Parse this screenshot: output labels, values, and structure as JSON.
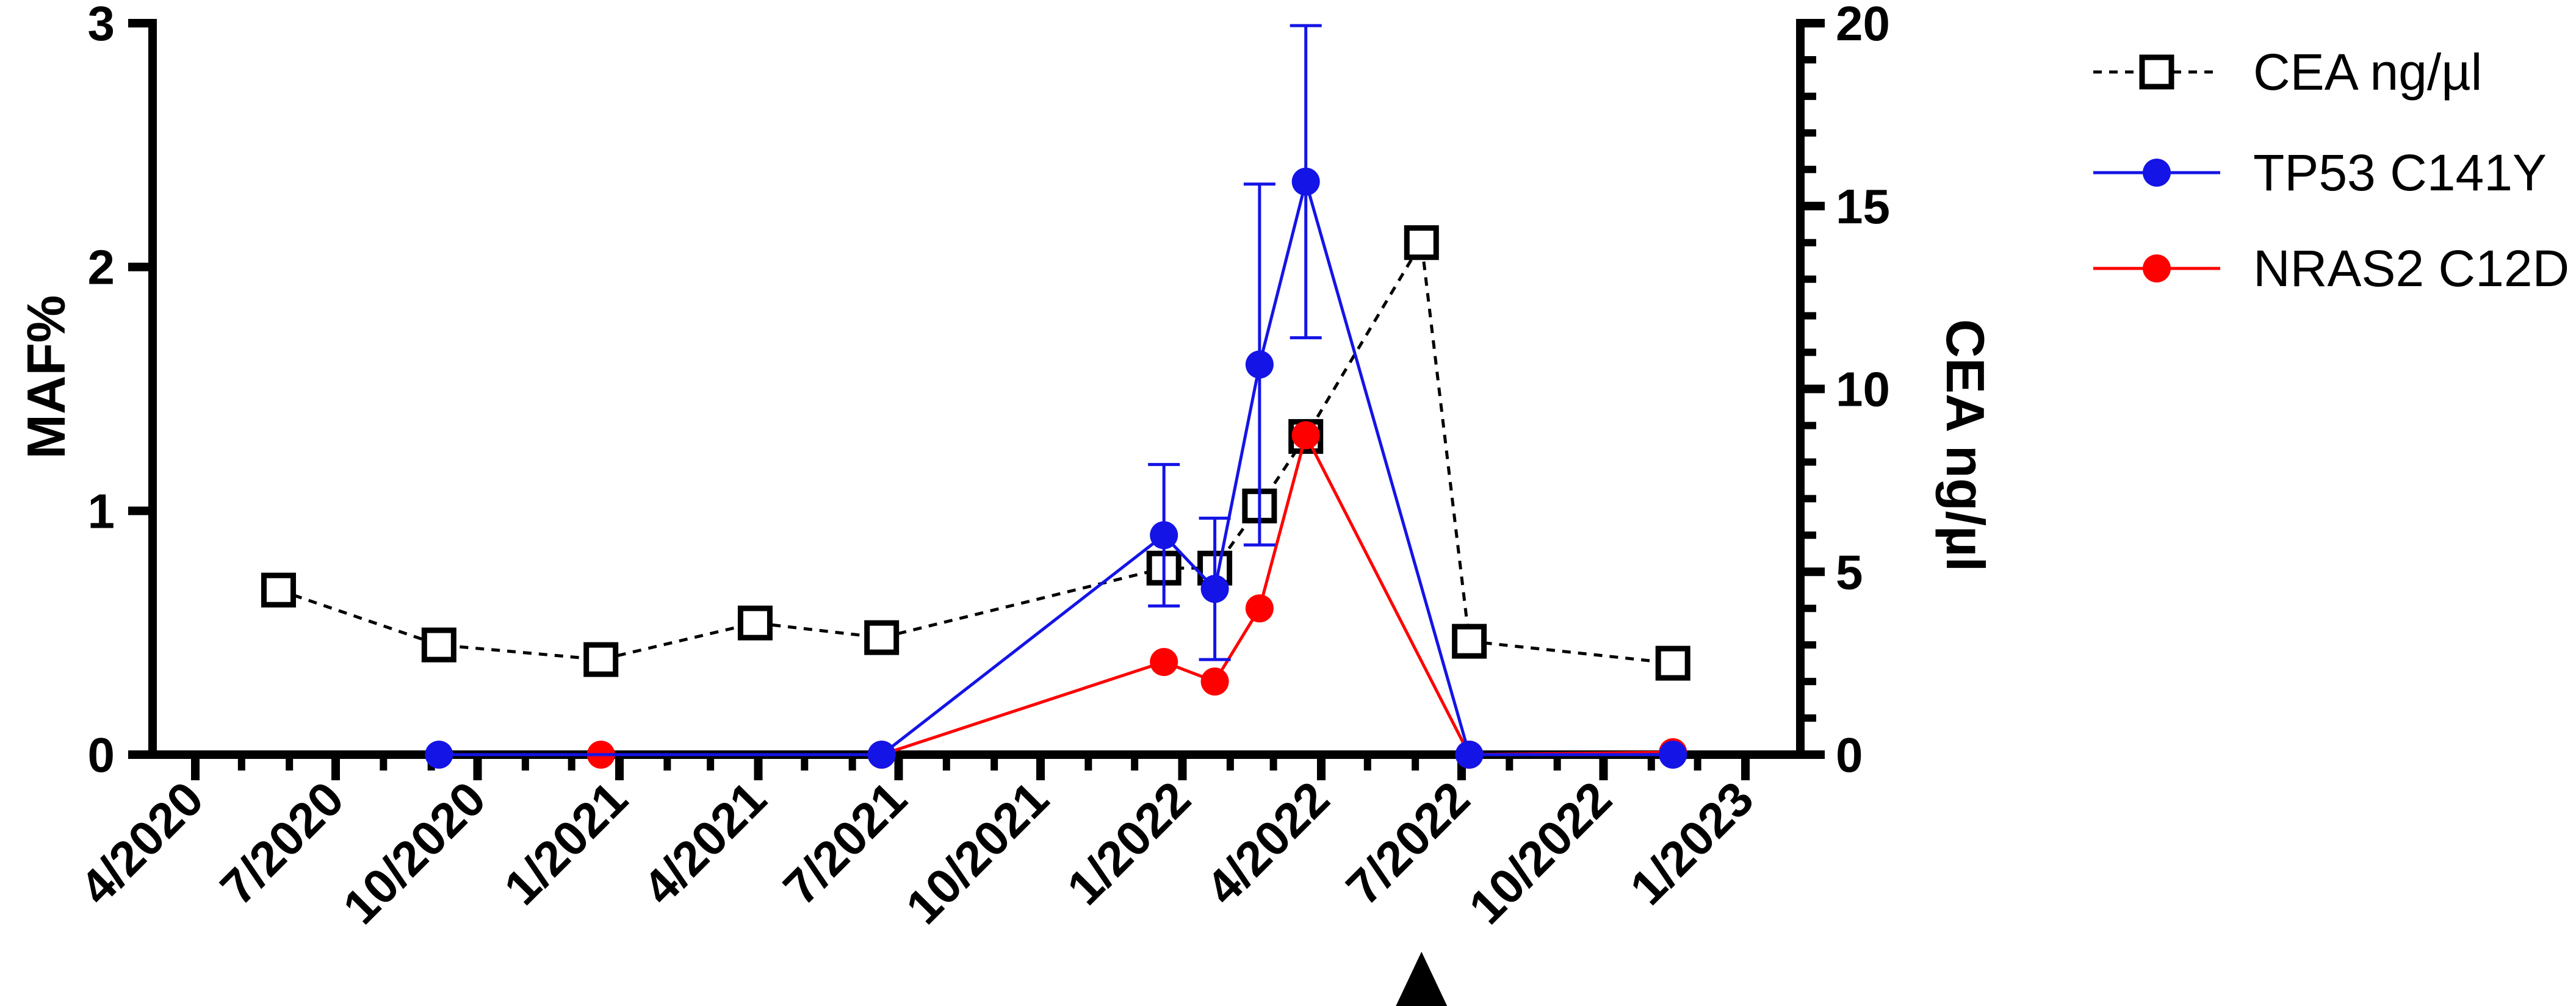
{
  "chart_data": {
    "type": "line",
    "x_type": "date",
    "xlim": [
      "2020-04-01",
      "2023-01-01"
    ],
    "x_tick_labels": [
      "4/2020",
      "7/2020",
      "10/2020",
      "1/2021",
      "4/2021",
      "7/2021",
      "10/2021",
      "1/2022",
      "4/2022",
      "7/2022",
      "10/2022",
      "1/2023"
    ],
    "x_ticks": [
      "2020-04-01",
      "2020-07-01",
      "2020-10-01",
      "2021-01-01",
      "2021-04-01",
      "2021-07-01",
      "2021-10-01",
      "2022-01-01",
      "2022-04-01",
      "2022-07-01",
      "2022-10-01",
      "2023-01-01"
    ],
    "ylabel": "MAF%",
    "ylim": [
      0,
      3
    ],
    "y_ticks": [
      0,
      1,
      2,
      3
    ],
    "y2label": "CEA ng/µl",
    "y2lim": [
      0,
      20
    ],
    "y2_ticks": [
      0,
      5,
      10,
      15,
      20
    ],
    "grid": false,
    "legend_position": "right",
    "series": [
      {
        "name": "CEA ng/µl",
        "axis": "right",
        "color": "#000000",
        "line_style": "dashed",
        "marker": "open-square",
        "x": [
          "2020-05-25",
          "2020-09-06",
          "2020-12-20",
          "2021-03-30",
          "2021-06-20",
          "2021-12-20",
          "2022-01-22",
          "2022-02-20",
          "2022-03-22",
          "2022-06-05",
          "2022-07-06",
          "2022-11-15"
        ],
        "values": [
          4.5,
          3.0,
          2.6,
          3.6,
          3.2,
          5.1,
          5.1,
          6.8,
          8.7,
          14.0,
          3.1,
          2.5
        ]
      },
      {
        "name": "TP53 C141Y",
        "axis": "left",
        "color": "#1414e6",
        "line_style": "solid",
        "marker": "filled-circle",
        "x": [
          "2020-09-06",
          "2021-06-20",
          "2021-12-20",
          "2022-01-22",
          "2022-02-20",
          "2022-03-22",
          "2022-07-06",
          "2022-11-15"
        ],
        "values": [
          0.0,
          0.0,
          0.9,
          0.68,
          1.6,
          2.35,
          0.0,
          0.0
        ],
        "error": [
          0,
          0,
          0.29,
          0.29,
          0.74,
          0.64,
          0,
          0
        ]
      },
      {
        "name": "NRAS2 C12D",
        "axis": "left",
        "color": "#ff0000",
        "line_style": "solid",
        "marker": "filled-circle",
        "x": [
          "2020-12-20",
          "2021-06-20",
          "2021-12-20",
          "2022-01-22",
          "2022-02-20",
          "2022-03-22",
          "2022-07-06",
          "2022-11-15"
        ],
        "values": [
          0.0,
          0.0,
          0.38,
          0.3,
          0.6,
          1.31,
          0.0,
          0.01
        ]
      }
    ],
    "annotations": [
      {
        "type": "triangle-marker",
        "x": "2022-06-05",
        "color": "#000000"
      }
    ]
  }
}
